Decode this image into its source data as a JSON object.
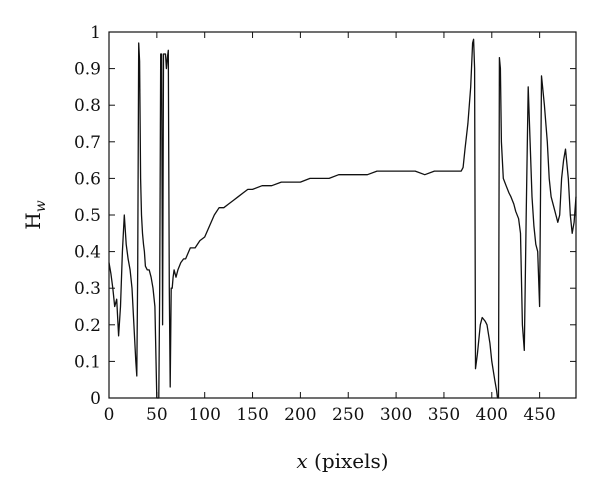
{
  "chart_data": {
    "type": "line",
    "title": "",
    "xlabel_var": "x",
    "xlabel_unit": " (pixels)",
    "ylabel_main": "H",
    "ylabel_sub": "w",
    "xlim": [
      0,
      488
    ],
    "ylim": [
      0,
      1
    ],
    "x_ticks": [
      0,
      50,
      100,
      150,
      200,
      250,
      300,
      350,
      400,
      450
    ],
    "x_tick_labels": [
      "0",
      "50",
      "100",
      "150",
      "200",
      "250",
      "300",
      "350",
      "400",
      "450"
    ],
    "y_ticks": [
      0,
      0.1,
      0.2,
      0.3,
      0.4,
      0.5,
      0.6,
      0.7,
      0.8,
      0.9,
      1
    ],
    "y_tick_labels": [
      "0",
      "0.1",
      "0.2",
      "0.3",
      "0.4",
      "0.5",
      "0.6",
      "0.7",
      "0.8",
      "0.9",
      "1"
    ],
    "grid": false,
    "legend": "none",
    "series": [
      {
        "color": "#111111",
        "x": [
          0,
          2,
          4,
          6,
          8,
          10,
          12,
          14,
          16,
          18,
          20,
          22,
          24,
          26,
          28,
          29,
          30,
          31,
          32,
          33,
          34,
          35,
          36,
          37,
          38,
          40,
          42,
          44,
          46,
          48,
          50,
          52,
          53,
          54,
          55,
          56,
          57,
          58,
          59,
          60,
          61,
          62,
          63,
          64,
          65,
          66,
          67,
          68,
          70,
          72,
          75,
          78,
          80,
          85,
          90,
          95,
          100,
          105,
          110,
          115,
          120,
          125,
          130,
          135,
          140,
          145,
          150,
          160,
          170,
          180,
          190,
          200,
          210,
          220,
          230,
          240,
          250,
          260,
          270,
          280,
          290,
          300,
          310,
          320,
          330,
          340,
          350,
          360,
          365,
          368,
          370,
          372,
          375,
          378,
          380,
          381,
          382,
          383,
          385,
          388,
          390,
          393,
          395,
          398,
          400,
          403,
          405,
          406,
          407,
          408,
          409,
          410,
          412,
          415,
          418,
          420,
          423,
          425,
          428,
          430,
          432,
          434,
          436,
          438,
          440,
          442,
          444,
          446,
          448,
          450,
          452,
          455,
          458,
          460,
          462,
          465,
          467,
          469,
          471,
          473,
          475,
          477,
          480,
          482,
          484,
          486,
          488
        ],
        "y": [
          0.37,
          0.34,
          0.3,
          0.25,
          0.27,
          0.17,
          0.25,
          0.4,
          0.5,
          0.42,
          0.38,
          0.35,
          0.3,
          0.2,
          0.1,
          0.06,
          0.35,
          0.97,
          0.92,
          0.6,
          0.5,
          0.45,
          0.42,
          0.4,
          0.36,
          0.35,
          0.35,
          0.33,
          0.3,
          0.25,
          0.0,
          0.0,
          0.3,
          0.94,
          0.94,
          0.2,
          0.94,
          0.94,
          0.94,
          0.9,
          0.93,
          0.95,
          0.3,
          0.03,
          0.3,
          0.3,
          0.33,
          0.35,
          0.33,
          0.35,
          0.37,
          0.38,
          0.38,
          0.41,
          0.41,
          0.43,
          0.44,
          0.47,
          0.5,
          0.52,
          0.52,
          0.53,
          0.54,
          0.55,
          0.56,
          0.57,
          0.57,
          0.58,
          0.58,
          0.59,
          0.59,
          0.59,
          0.6,
          0.6,
          0.6,
          0.61,
          0.61,
          0.61,
          0.61,
          0.62,
          0.62,
          0.62,
          0.62,
          0.62,
          0.61,
          0.62,
          0.62,
          0.62,
          0.62,
          0.62,
          0.63,
          0.68,
          0.75,
          0.85,
          0.97,
          0.98,
          0.9,
          0.08,
          0.12,
          0.2,
          0.22,
          0.21,
          0.2,
          0.15,
          0.1,
          0.05,
          0.02,
          0.0,
          0.0,
          0.93,
          0.9,
          0.7,
          0.6,
          0.58,
          0.56,
          0.55,
          0.53,
          0.51,
          0.49,
          0.45,
          0.2,
          0.13,
          0.5,
          0.85,
          0.7,
          0.55,
          0.47,
          0.42,
          0.4,
          0.25,
          0.88,
          0.8,
          0.7,
          0.6,
          0.55,
          0.52,
          0.5,
          0.48,
          0.5,
          0.6,
          0.65,
          0.68,
          0.6,
          0.5,
          0.45,
          0.48,
          0.55
        ]
      }
    ]
  }
}
